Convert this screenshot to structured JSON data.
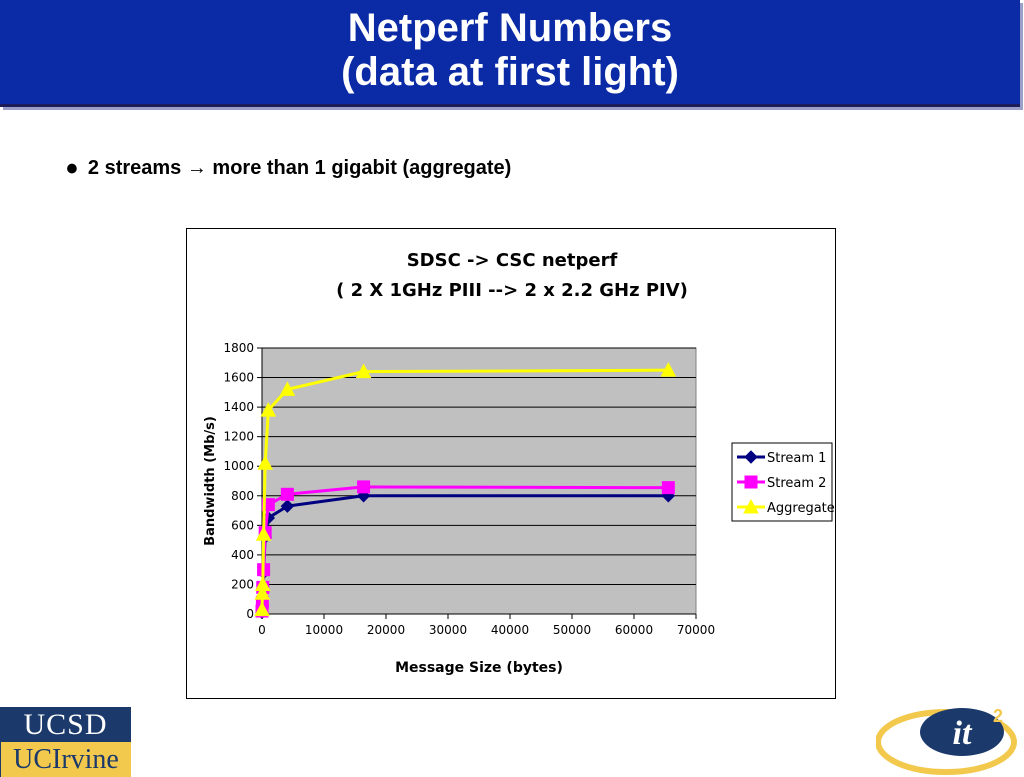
{
  "slide": {
    "title_line1": "Netperf Numbers",
    "title_line2": "(data at first light)",
    "bullet_text": "2 streams → more than 1 gigabit (aggregate)"
  },
  "logos": {
    "ucsd": "UCSD",
    "ucirvine": "UCIrvine",
    "it2": "it",
    "it2_sup": "2"
  },
  "chart_data": {
    "type": "line",
    "title_line1": "SDSC -> CSC netperf",
    "title_line2": "( 2 X 1GHz PIII --> 2 x 2.2 GHz PIV)",
    "xlabel": "Message Size (bytes)",
    "ylabel": "Bandwidth (Mb/s)",
    "xlim": [
      0,
      70000
    ],
    "ylim": [
      0,
      1800
    ],
    "xticks": [
      0,
      10000,
      20000,
      30000,
      40000,
      50000,
      60000,
      70000
    ],
    "yticks": [
      0,
      200,
      400,
      600,
      800,
      1000,
      1200,
      1400,
      1600,
      1800
    ],
    "grid": "horizontal",
    "legend": "right",
    "plot_background": "#c0c0c0",
    "series": [
      {
        "name": "Stream 1",
        "color": "#000080",
        "marker": "diamond",
        "x": [
          1,
          64,
          128,
          256,
          512,
          1024,
          4096,
          16384,
          65536
        ],
        "y": [
          10,
          60,
          150,
          280,
          520,
          650,
          730,
          800,
          800
        ]
      },
      {
        "name": "Stream 2",
        "color": "#ff00ff",
        "marker": "square",
        "x": [
          1,
          64,
          128,
          256,
          512,
          1024,
          4096,
          16384,
          65536
        ],
        "y": [
          20,
          80,
          180,
          300,
          550,
          740,
          810,
          860,
          855
        ]
      },
      {
        "name": "Aggregate",
        "color": "#ffff00",
        "marker": "triangle",
        "x": [
          1,
          64,
          128,
          256,
          512,
          1024,
          4096,
          16384,
          65536
        ],
        "y": [
          30,
          140,
          200,
          540,
          1020,
          1380,
          1520,
          1640,
          1650
        ]
      }
    ]
  }
}
